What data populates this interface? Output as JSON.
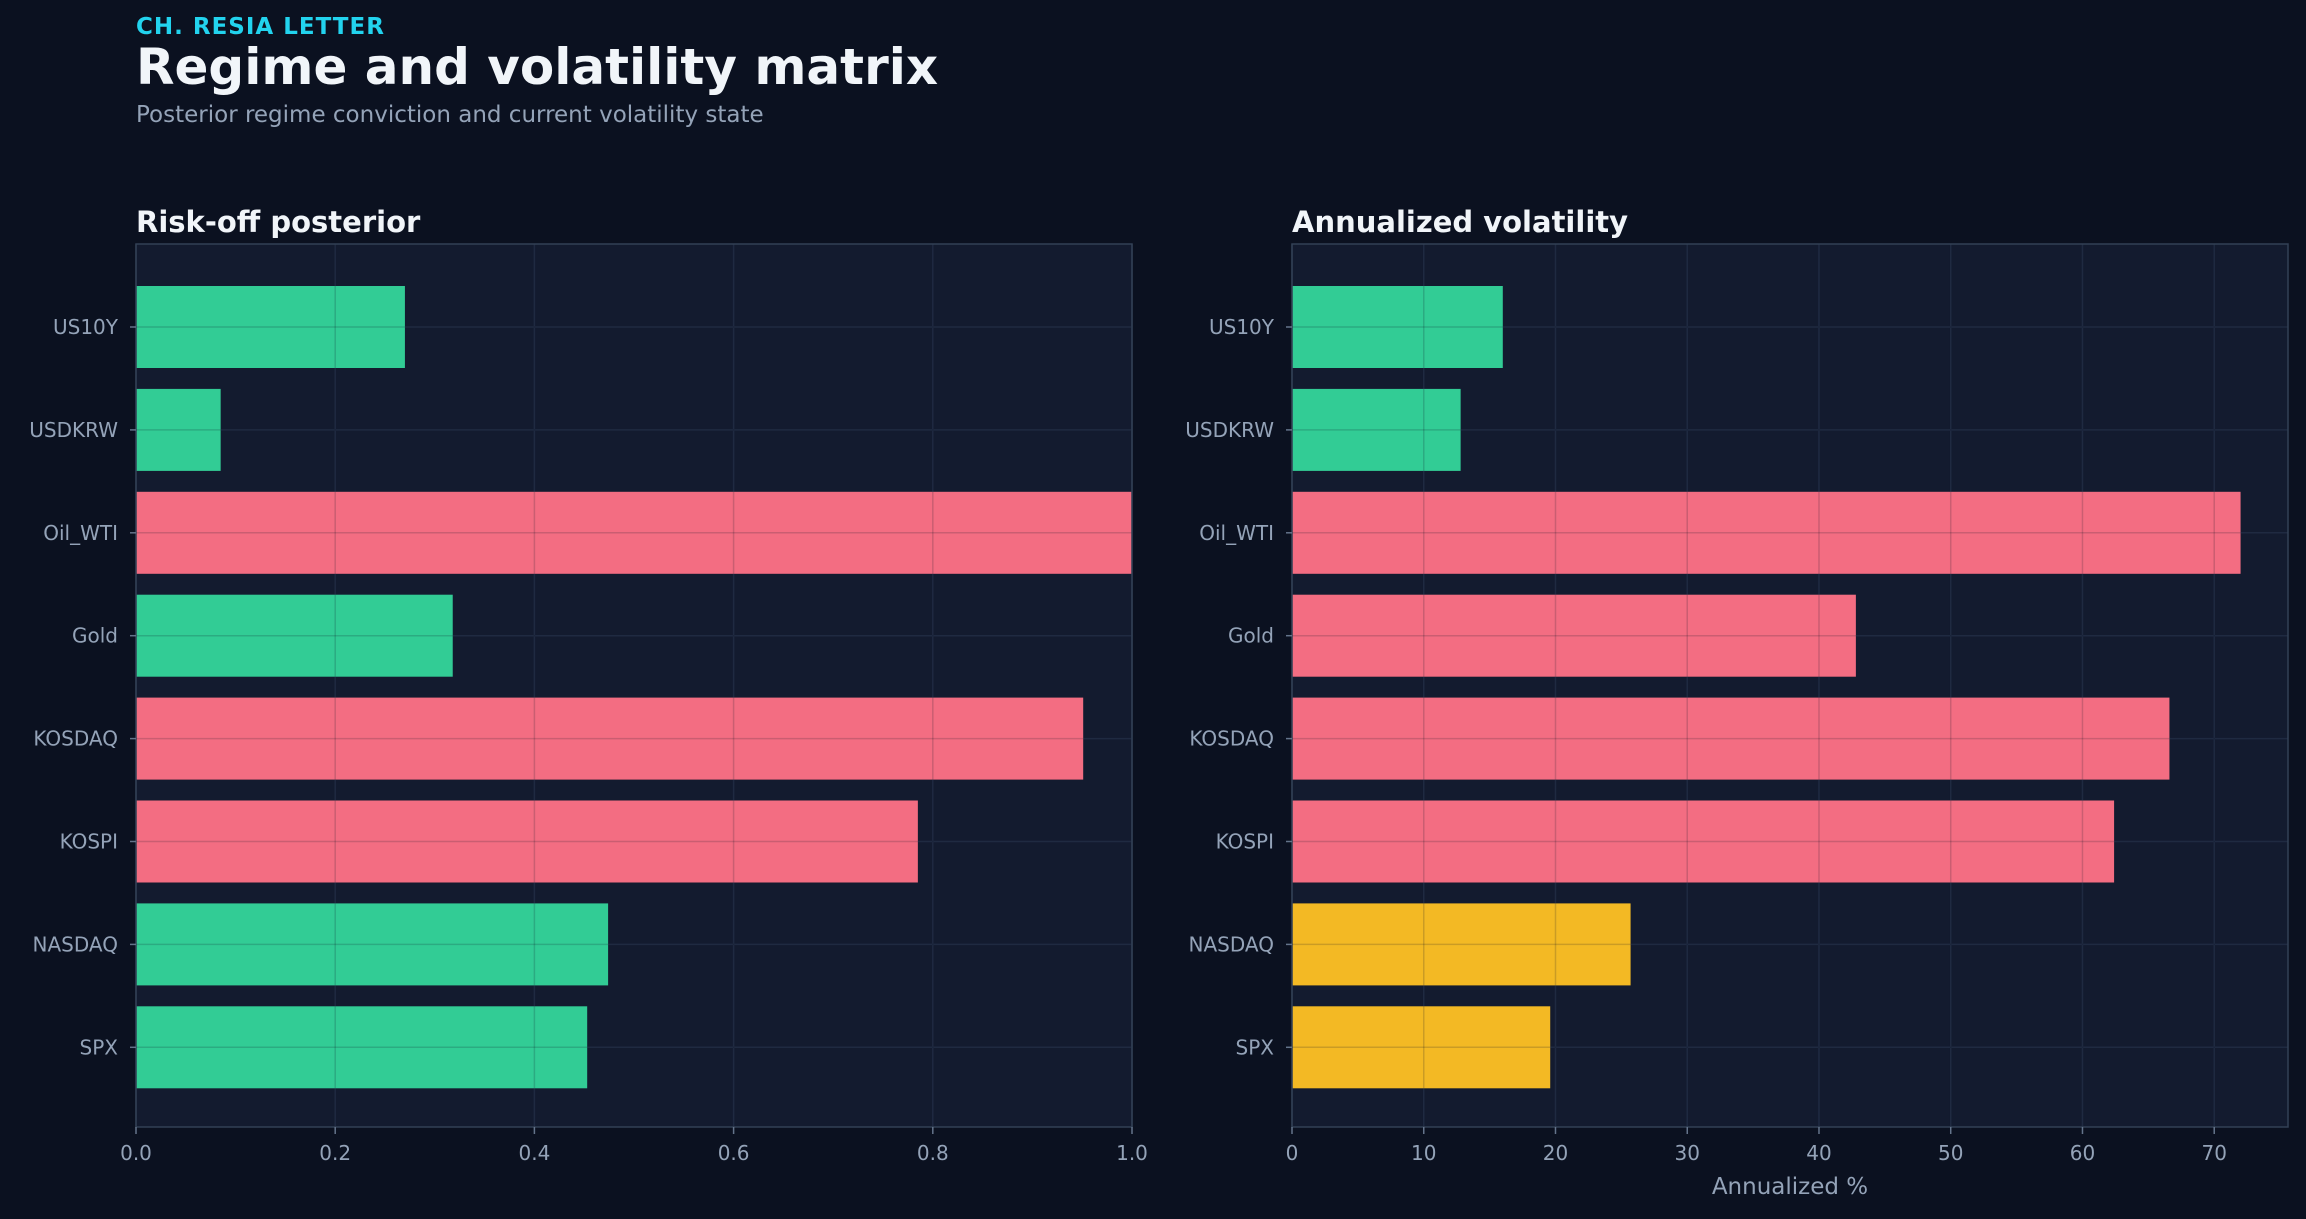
{
  "header": {
    "kicker": "CH. RESIA LETTER",
    "title": "Regime and volatility matrix",
    "subtitle": "Posterior regime conviction and current volatility state"
  },
  "colors": {
    "background": "#0b1120",
    "panel": "#131b2f",
    "green": "#34d399",
    "red": "#fb7185",
    "amber": "#fbbf24",
    "kicker": "#22d3ee"
  },
  "chart_data": [
    {
      "type": "bar",
      "orientation": "horizontal",
      "title": "Risk-off posterior",
      "xlabel": "",
      "ylabel": "",
      "categories": [
        "US10Y",
        "USDKRW",
        "Oil_WTI",
        "Gold",
        "KOSDAQ",
        "KOSPI",
        "NASDAQ",
        "SPX"
      ],
      "values": [
        0.27,
        0.085,
        1.0,
        0.318,
        0.951,
        0.785,
        0.474,
        0.453
      ],
      "bar_colors": [
        "green",
        "green",
        "red",
        "green",
        "red",
        "red",
        "green",
        "green"
      ],
      "xlim": [
        0,
        1.0
      ],
      "xticks": [
        "0.0",
        "0.2",
        "0.4",
        "0.6",
        "0.8",
        "1.0"
      ],
      "xtick_values": [
        0,
        0.2,
        0.4,
        0.6,
        0.8,
        1.0
      ],
      "grid": true
    },
    {
      "type": "bar",
      "orientation": "horizontal",
      "title": "Annualized volatility",
      "xlabel": "Annualized %",
      "ylabel": "",
      "categories": [
        "US10Y",
        "USDKRW",
        "Oil_WTI",
        "Gold",
        "KOSDAQ",
        "KOSPI",
        "NASDAQ",
        "SPX"
      ],
      "values": [
        16.0,
        12.8,
        72.0,
        42.8,
        66.6,
        62.4,
        25.7,
        19.6
      ],
      "bar_colors": [
        "green",
        "green",
        "red",
        "red",
        "red",
        "red",
        "amber",
        "amber"
      ],
      "xlim": [
        0,
        75.6
      ],
      "xticks": [
        "0",
        "10",
        "20",
        "30",
        "40",
        "50",
        "60",
        "70"
      ],
      "xtick_values": [
        0,
        10,
        20,
        30,
        40,
        50,
        60,
        70
      ],
      "grid": true
    }
  ]
}
